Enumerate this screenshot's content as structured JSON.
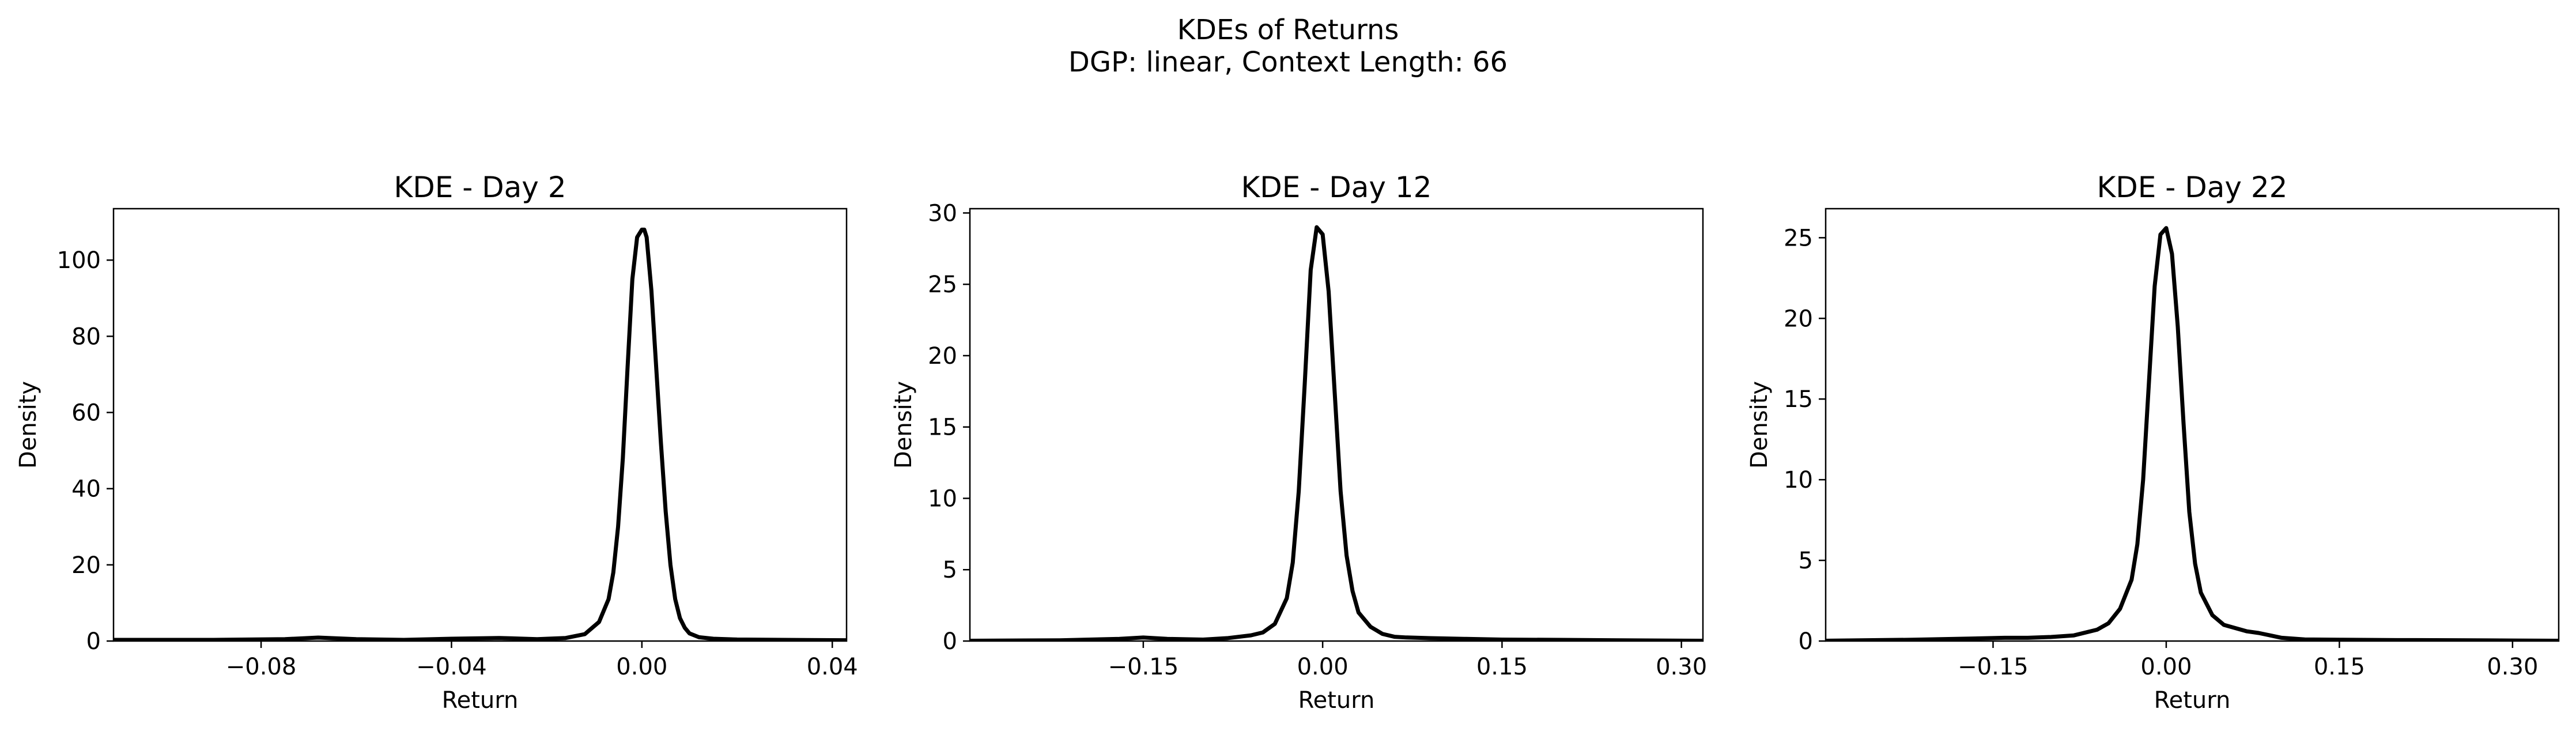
{
  "figure": {
    "title": "KDEs of Returns",
    "subtitle": "DGP: linear, Context Length: 66"
  },
  "chart_data": [
    {
      "type": "line",
      "title": "KDE - Day 2",
      "xlabel": "Return",
      "ylabel": "Density",
      "xlim": [
        -0.111,
        0.043
      ],
      "ylim": [
        0,
        113.5
      ],
      "xticks": [
        -0.08,
        -0.04,
        0.0,
        0.04
      ],
      "xtick_labels": [
        "−0.08",
        "−0.04",
        "0.00",
        "0.04"
      ],
      "yticks": [
        0,
        20,
        40,
        60,
        80,
        100
      ],
      "ytick_labels": [
        "0",
        "20",
        "40",
        "60",
        "80",
        "100"
      ],
      "grid": false,
      "color": "#000000",
      "series": [
        {
          "x": [
            -0.111,
            -0.09,
            -0.075,
            -0.068,
            -0.06,
            -0.05,
            -0.04,
            -0.03,
            -0.022,
            -0.016,
            -0.012,
            -0.009,
            -0.007,
            -0.006,
            -0.005,
            -0.004,
            -0.003,
            -0.002,
            -0.001,
            0.0,
            0.0005,
            0.001,
            0.002,
            0.003,
            0.004,
            0.005,
            0.006,
            0.007,
            0.008,
            0.009,
            0.01,
            0.012,
            0.015,
            0.02,
            0.03,
            0.043
          ],
          "y": [
            0.3,
            0.3,
            0.5,
            0.9,
            0.5,
            0.3,
            0.6,
            0.8,
            0.5,
            0.8,
            1.8,
            5,
            11,
            18,
            30,
            48,
            72,
            95,
            106,
            108,
            108,
            106,
            92,
            72,
            52,
            34,
            20,
            11,
            6,
            3.5,
            2,
            1,
            0.6,
            0.4,
            0.3,
            0.2
          ]
        }
      ]
    },
    {
      "type": "line",
      "title": "KDE - Day 12",
      "xlabel": "Return",
      "ylabel": "Density",
      "xlim": [
        -0.295,
        0.318
      ],
      "ylim": [
        0,
        30.3
      ],
      "xticks": [
        -0.15,
        0.0,
        0.15,
        0.3
      ],
      "xtick_labels": [
        "−0.15",
        "0.00",
        "0.15",
        "0.30"
      ],
      "yticks": [
        0,
        5,
        10,
        15,
        20,
        25,
        30
      ],
      "ytick_labels": [
        "0",
        "5",
        "10",
        "15",
        "20",
        "25",
        "30"
      ],
      "grid": false,
      "color": "#000000",
      "series": [
        {
          "x": [
            -0.295,
            -0.22,
            -0.17,
            -0.15,
            -0.13,
            -0.1,
            -0.08,
            -0.06,
            -0.05,
            -0.04,
            -0.03,
            -0.025,
            -0.02,
            -0.015,
            -0.01,
            -0.005,
            0.0,
            0.005,
            0.01,
            0.015,
            0.02,
            0.025,
            0.03,
            0.04,
            0.05,
            0.06,
            0.07,
            0.09,
            0.12,
            0.15,
            0.2,
            0.25,
            0.318
          ],
          "y": [
            0.02,
            0.05,
            0.15,
            0.25,
            0.15,
            0.1,
            0.2,
            0.4,
            0.6,
            1.2,
            3.0,
            5.5,
            10.5,
            18.0,
            26.0,
            29.0,
            28.5,
            24.5,
            17.5,
            10.5,
            6.0,
            3.5,
            2.0,
            1.0,
            0.5,
            0.3,
            0.25,
            0.2,
            0.15,
            0.1,
            0.08,
            0.05,
            0.02
          ]
        }
      ]
    },
    {
      "type": "line",
      "title": "KDE - Day 22",
      "xlabel": "Return",
      "ylabel": "Density",
      "xlim": [
        -0.295,
        0.34
      ],
      "ylim": [
        0,
        26.8
      ],
      "xticks": [
        -0.15,
        0.0,
        0.15,
        0.3
      ],
      "xtick_labels": [
        "−0.15",
        "0.00",
        "0.15",
        "0.30"
      ],
      "yticks": [
        0,
        5,
        10,
        15,
        20,
        25
      ],
      "ytick_labels": [
        "0",
        "5",
        "10",
        "15",
        "20",
        "25"
      ],
      "grid": false,
      "color": "#000000",
      "series": [
        {
          "x": [
            -0.295,
            -0.22,
            -0.17,
            -0.14,
            -0.12,
            -0.1,
            -0.08,
            -0.06,
            -0.05,
            -0.04,
            -0.03,
            -0.025,
            -0.02,
            -0.015,
            -0.01,
            -0.005,
            0.0,
            0.005,
            0.01,
            0.015,
            0.02,
            0.025,
            0.03,
            0.04,
            0.05,
            0.06,
            0.07,
            0.08,
            0.09,
            0.1,
            0.12,
            0.15,
            0.2,
            0.25,
            0.3,
            0.34
          ],
          "y": [
            0.02,
            0.08,
            0.15,
            0.2,
            0.2,
            0.25,
            0.35,
            0.7,
            1.1,
            2.0,
            3.8,
            6.0,
            10.0,
            16.0,
            22.0,
            25.2,
            25.6,
            24.0,
            19.5,
            13.5,
            8.0,
            4.8,
            3.0,
            1.6,
            1.0,
            0.8,
            0.6,
            0.5,
            0.35,
            0.2,
            0.1,
            0.08,
            0.06,
            0.05,
            0.03,
            0.02
          ]
        }
      ]
    }
  ]
}
